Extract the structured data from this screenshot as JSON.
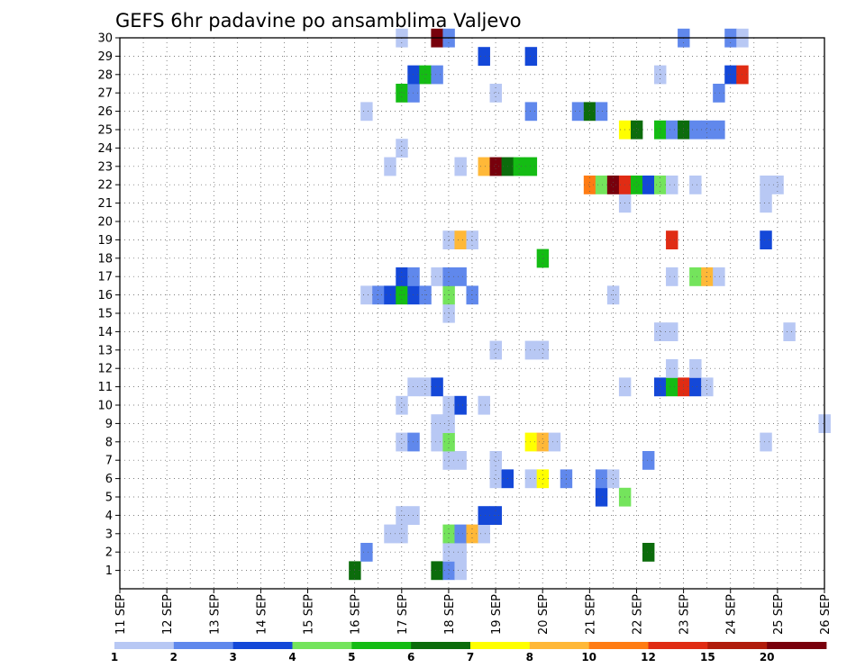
{
  "chart_data": {
    "type": "heatmap",
    "title": "GEFS 6hr padavine po ansamblima Valjevo",
    "x_tick_labels": [
      "11 SEP",
      "12 SEP",
      "13 SEP",
      "14 SEP",
      "15 SEP",
      "16 SEP",
      "17 SEP",
      "18 SEP",
      "19 SEP",
      "20 SEP",
      "21 SEP",
      "22 SEP",
      "23 SEP",
      "24 SEP",
      "25 SEP",
      "26 SEP"
    ],
    "y_tick_labels": [
      "1",
      "2",
      "3",
      "4",
      "5",
      "6",
      "7",
      "8",
      "9",
      "10",
      "11",
      "12",
      "13",
      "14",
      "15",
      "16",
      "17",
      "18",
      "19",
      "20",
      "21",
      "22",
      "23",
      "24",
      "25",
      "26",
      "27",
      "28",
      "29",
      "30"
    ],
    "xlim": [
      11,
      26
    ],
    "ylim": [
      0,
      30
    ],
    "grid": true,
    "colorbar": {
      "levels": [
        "1",
        "2",
        "3",
        "4",
        "5",
        "6",
        "7",
        "8",
        "10",
        "12",
        "15",
        "20"
      ],
      "colors": [
        "#b8c8f4",
        "#6088ec",
        "#1448d8",
        "#74e45c",
        "#14bc14",
        "#0c6c0c",
        "#ffff00",
        "#ffb838",
        "#ff7c14",
        "#e02c14",
        "#b01c0c",
        "#78000c"
      ]
    },
    "cells": [
      {
        "d": 16.0,
        "m": 0,
        "c": 5
      },
      {
        "d": 17.75,
        "m": 0,
        "c": 5
      },
      {
        "d": 18.0,
        "m": 0,
        "c": 1
      },
      {
        "d": 18.25,
        "m": 0,
        "c": 0
      },
      {
        "d": 16.25,
        "m": 1,
        "c": 1
      },
      {
        "d": 18.0,
        "m": 1,
        "c": 0
      },
      {
        "d": 18.25,
        "m": 1,
        "c": 0
      },
      {
        "d": 22.25,
        "m": 1,
        "c": 5
      },
      {
        "d": 16.75,
        "m": 2,
        "c": 0
      },
      {
        "d": 17.0,
        "m": 2,
        "c": 0
      },
      {
        "d": 18.0,
        "m": 2,
        "c": 3
      },
      {
        "d": 18.25,
        "m": 2,
        "c": 1
      },
      {
        "d": 18.5,
        "m": 2,
        "c": 7
      },
      {
        "d": 18.75,
        "m": 2,
        "c": 0
      },
      {
        "d": 17.0,
        "m": 3,
        "c": 0
      },
      {
        "d": 17.25,
        "m": 3,
        "c": 0
      },
      {
        "d": 18.75,
        "m": 3,
        "c": 2
      },
      {
        "d": 19.0,
        "m": 3,
        "c": 2
      },
      {
        "d": 21.25,
        "m": 4,
        "c": 2
      },
      {
        "d": 21.75,
        "m": 4,
        "c": 3
      },
      {
        "d": 19.0,
        "m": 5,
        "c": 0
      },
      {
        "d": 19.25,
        "m": 5,
        "c": 2
      },
      {
        "d": 19.75,
        "m": 5,
        "c": 0
      },
      {
        "d": 20.0,
        "m": 5,
        "c": 6
      },
      {
        "d": 20.5,
        "m": 5,
        "c": 1
      },
      {
        "d": 21.25,
        "m": 5,
        "c": 1
      },
      {
        "d": 21.5,
        "m": 5,
        "c": 0
      },
      {
        "d": 18.0,
        "m": 6,
        "c": 0
      },
      {
        "d": 18.25,
        "m": 6,
        "c": 0
      },
      {
        "d": 19.0,
        "m": 6,
        "c": 0
      },
      {
        "d": 22.25,
        "m": 6,
        "c": 1
      },
      {
        "d": 17.0,
        "m": 7,
        "c": 0
      },
      {
        "d": 17.25,
        "m": 7,
        "c": 1
      },
      {
        "d": 17.75,
        "m": 7,
        "c": 0
      },
      {
        "d": 18.0,
        "m": 7,
        "c": 3
      },
      {
        "d": 19.75,
        "m": 7,
        "c": 6
      },
      {
        "d": 20.0,
        "m": 7,
        "c": 7
      },
      {
        "d": 20.25,
        "m": 7,
        "c": 0
      },
      {
        "d": 24.75,
        "m": 7,
        "c": 0
      },
      {
        "d": 17.75,
        "m": 8,
        "c": 0
      },
      {
        "d": 18.0,
        "m": 8,
        "c": 0
      },
      {
        "d": 26.0,
        "m": 8,
        "c": 0
      },
      {
        "d": 17.0,
        "m": 9,
        "c": 0
      },
      {
        "d": 18.0,
        "m": 9,
        "c": 0
      },
      {
        "d": 18.25,
        "m": 9,
        "c": 2
      },
      {
        "d": 18.75,
        "m": 9,
        "c": 0
      },
      {
        "d": 17.25,
        "m": 10,
        "c": 0
      },
      {
        "d": 17.5,
        "m": 10,
        "c": 0
      },
      {
        "d": 17.75,
        "m": 10,
        "c": 2
      },
      {
        "d": 21.75,
        "m": 10,
        "c": 0
      },
      {
        "d": 22.5,
        "m": 10,
        "c": 2
      },
      {
        "d": 22.75,
        "m": 10,
        "c": 4
      },
      {
        "d": 23.0,
        "m": 10,
        "c": 9
      },
      {
        "d": 23.25,
        "m": 10,
        "c": 2
      },
      {
        "d": 23.5,
        "m": 10,
        "c": 0
      },
      {
        "d": 22.75,
        "m": 11,
        "c": 0
      },
      {
        "d": 23.25,
        "m": 11,
        "c": 0
      },
      {
        "d": 19.0,
        "m": 12,
        "c": 0
      },
      {
        "d": 19.75,
        "m": 12,
        "c": 0
      },
      {
        "d": 20.0,
        "m": 12,
        "c": 0
      },
      {
        "d": 22.5,
        "m": 13,
        "c": 0
      },
      {
        "d": 22.75,
        "m": 13,
        "c": 0
      },
      {
        "d": 25.25,
        "m": 13,
        "c": 0
      },
      {
        "d": 18.0,
        "m": 14,
        "c": 0
      },
      {
        "d": 16.25,
        "m": 15,
        "c": 0
      },
      {
        "d": 16.5,
        "m": 15,
        "c": 1
      },
      {
        "d": 16.75,
        "m": 15,
        "c": 2
      },
      {
        "d": 17.0,
        "m": 15,
        "c": 4
      },
      {
        "d": 17.25,
        "m": 15,
        "c": 2
      },
      {
        "d": 17.5,
        "m": 15,
        "c": 1
      },
      {
        "d": 18.0,
        "m": 15,
        "c": 3
      },
      {
        "d": 18.5,
        "m": 15,
        "c": 1
      },
      {
        "d": 21.5,
        "m": 15,
        "c": 0
      },
      {
        "d": 17.0,
        "m": 16,
        "c": 2
      },
      {
        "d": 17.25,
        "m": 16,
        "c": 1
      },
      {
        "d": 17.75,
        "m": 16,
        "c": 0
      },
      {
        "d": 18.0,
        "m": 16,
        "c": 1
      },
      {
        "d": 18.25,
        "m": 16,
        "c": 1
      },
      {
        "d": 22.75,
        "m": 16,
        "c": 0
      },
      {
        "d": 23.25,
        "m": 16,
        "c": 3
      },
      {
        "d": 23.5,
        "m": 16,
        "c": 7
      },
      {
        "d": 23.75,
        "m": 16,
        "c": 0
      },
      {
        "d": 20.0,
        "m": 17,
        "c": 4
      },
      {
        "d": 18.0,
        "m": 18,
        "c": 0
      },
      {
        "d": 18.25,
        "m": 18,
        "c": 7
      },
      {
        "d": 18.5,
        "m": 18,
        "c": 0
      },
      {
        "d": 22.75,
        "m": 18,
        "c": 9
      },
      {
        "d": 24.75,
        "m": 18,
        "c": 2
      },
      {
        "d": 21.75,
        "m": 20,
        "c": 0
      },
      {
        "d": 24.75,
        "m": 20,
        "c": 0
      },
      {
        "d": 21.0,
        "m": 21,
        "c": 8
      },
      {
        "d": 21.25,
        "m": 21,
        "c": 3
      },
      {
        "d": 21.5,
        "m": 21,
        "c": 11
      },
      {
        "d": 21.75,
        "m": 21,
        "c": 9
      },
      {
        "d": 22.0,
        "m": 21,
        "c": 4
      },
      {
        "d": 22.25,
        "m": 21,
        "c": 2
      },
      {
        "d": 22.5,
        "m": 21,
        "c": 3
      },
      {
        "d": 22.75,
        "m": 21,
        "c": 0
      },
      {
        "d": 23.25,
        "m": 21,
        "c": 0
      },
      {
        "d": 24.75,
        "m": 21,
        "c": 0
      },
      {
        "d": 25.0,
        "m": 21,
        "c": 0
      },
      {
        "d": 16.75,
        "m": 22,
        "c": 0
      },
      {
        "d": 18.25,
        "m": 22,
        "c": 0
      },
      {
        "d": 18.75,
        "m": 22,
        "c": 7
      },
      {
        "d": 19.0,
        "m": 22,
        "c": 11
      },
      {
        "d": 19.25,
        "m": 22,
        "c": 5
      },
      {
        "d": 19.5,
        "m": 22,
        "c": 4
      },
      {
        "d": 19.75,
        "m": 22,
        "c": 4
      },
      {
        "d": 17.0,
        "m": 23,
        "c": 0
      },
      {
        "d": 21.75,
        "m": 24,
        "c": 6
      },
      {
        "d": 22.0,
        "m": 24,
        "c": 5
      },
      {
        "d": 22.5,
        "m": 24,
        "c": 4
      },
      {
        "d": 22.75,
        "m": 24,
        "c": 1
      },
      {
        "d": 23.0,
        "m": 24,
        "c": 5
      },
      {
        "d": 23.25,
        "m": 24,
        "c": 1
      },
      {
        "d": 23.5,
        "m": 24,
        "c": 1
      },
      {
        "d": 23.75,
        "m": 24,
        "c": 1
      },
      {
        "d": 16.25,
        "m": 25,
        "c": 0
      },
      {
        "d": 19.75,
        "m": 25,
        "c": 1
      },
      {
        "d": 20.75,
        "m": 25,
        "c": 1
      },
      {
        "d": 21.0,
        "m": 25,
        "c": 5
      },
      {
        "d": 21.25,
        "m": 25,
        "c": 1
      },
      {
        "d": 17.0,
        "m": 26,
        "c": 4
      },
      {
        "d": 17.25,
        "m": 26,
        "c": 1
      },
      {
        "d": 19.0,
        "m": 26,
        "c": 0
      },
      {
        "d": 23.75,
        "m": 26,
        "c": 1
      },
      {
        "d": 17.25,
        "m": 27,
        "c": 2
      },
      {
        "d": 17.5,
        "m": 27,
        "c": 4
      },
      {
        "d": 17.75,
        "m": 27,
        "c": 1
      },
      {
        "d": 22.5,
        "m": 27,
        "c": 0
      },
      {
        "d": 24.0,
        "m": 27,
        "c": 2
      },
      {
        "d": 24.25,
        "m": 27,
        "c": 9
      },
      {
        "d": 18.75,
        "m": 28,
        "c": 2
      },
      {
        "d": 19.75,
        "m": 28,
        "c": 2
      },
      {
        "d": 17.0,
        "m": 29,
        "c": 0
      },
      {
        "d": 17.75,
        "m": 29,
        "c": 11
      },
      {
        "d": 18.0,
        "m": 29,
        "c": 1
      },
      {
        "d": 23.0,
        "m": 29,
        "c": 1
      },
      {
        "d": 24.0,
        "m": 29,
        "c": 1
      },
      {
        "d": 24.25,
        "m": 29,
        "c": 0
      }
    ]
  }
}
